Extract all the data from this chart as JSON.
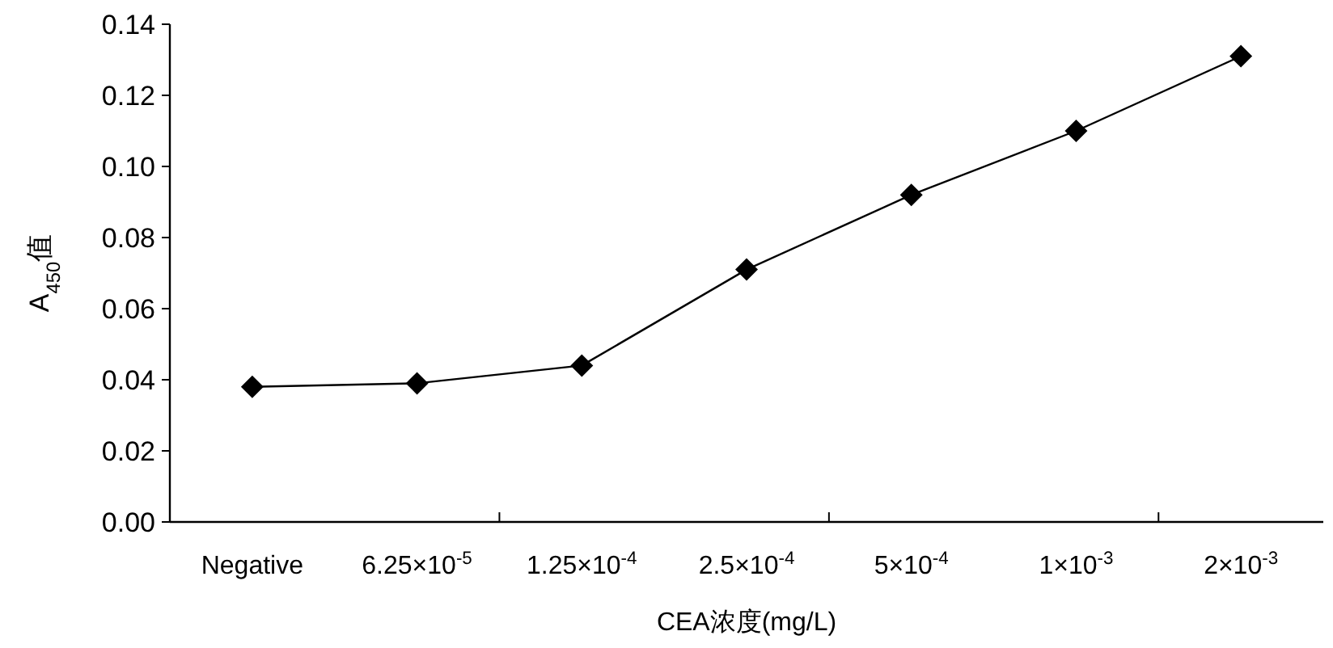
{
  "chart_data": {
    "type": "line",
    "xlabel": "CEA浓度(mg/L)",
    "ylabel": "A$_{450}$值",
    "categories": [
      "Negative",
      "6.25×10$^{-5}$",
      "1.25×10$^{-4}$",
      "2.5×10$^{-4}$",
      "5×10$^{-4}$",
      "1×10$^{-3}$",
      "2×10$^{-3}$"
    ],
    "series": [
      {
        "color": "#000000",
        "values": [
          0.038,
          0.039,
          0.044,
          0.071,
          0.092,
          0.11,
          0.131
        ]
      }
    ],
    "ylim": [
      0,
      0.14
    ],
    "yticks": [
      {
        "value": 0,
        "label": "0.00"
      },
      {
        "value": 0.02,
        "label": "0.02"
      },
      {
        "value": 0.04,
        "label": "0.04"
      },
      {
        "value": 0.06,
        "label": "0.06"
      },
      {
        "value": 0.08,
        "label": "0.08"
      },
      {
        "value": 0.1,
        "label": "0.10"
      },
      {
        "value": 0.12,
        "label": "0.12"
      },
      {
        "value": 0.14,
        "label": "0.14"
      }
    ],
    "marker": "diamond",
    "line_style": "solid",
    "grid": false
  }
}
